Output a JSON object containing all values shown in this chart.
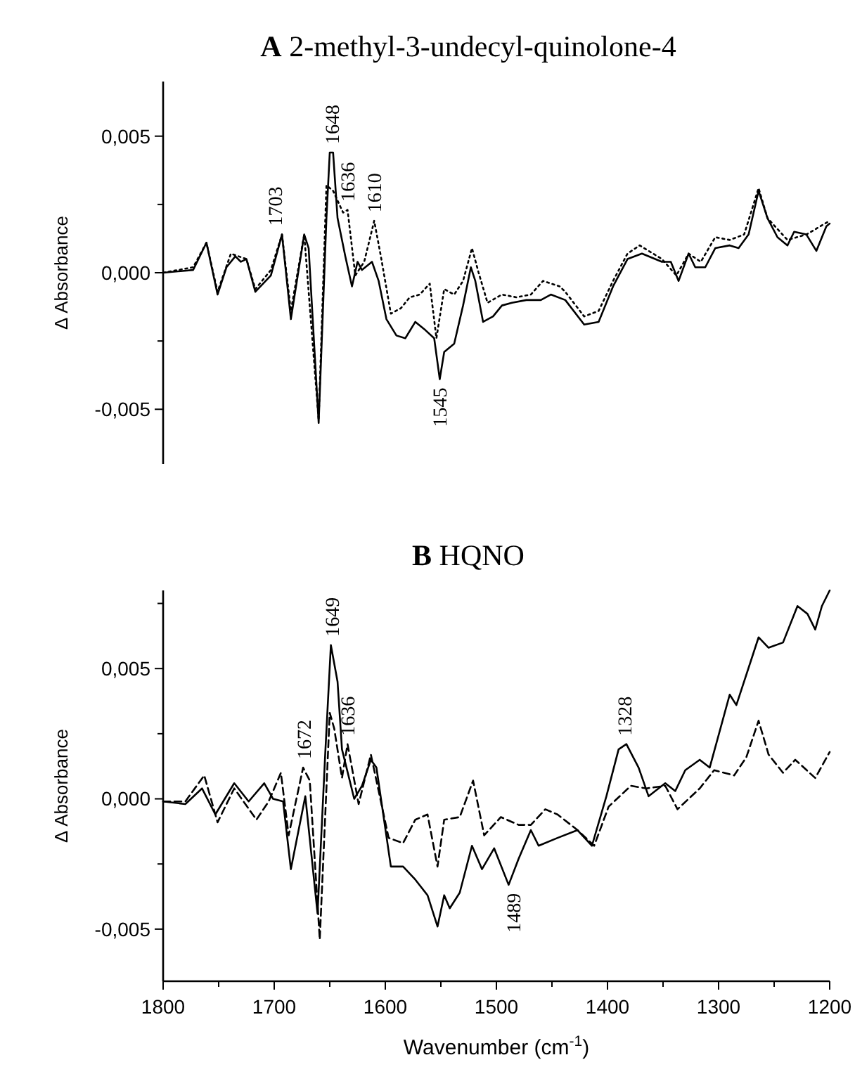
{
  "chart_data": [
    {
      "type": "line",
      "title": "A 2-methyl-3-undecyl-quinolone-4",
      "ylabel": "Δ Absorbance",
      "xlim": [
        1800,
        1200
      ],
      "ylim": [
        -0.007,
        0.007
      ],
      "yticks": [
        {
          "value": 0.005,
          "label": "0,005"
        },
        {
          "value": 0.0025,
          "label": null
        },
        {
          "value": 0,
          "label": "0,000"
        },
        {
          "value": -0.0025,
          "label": null
        },
        {
          "value": -0.005,
          "label": "-0,005"
        }
      ],
      "tick_labels": "y",
      "grid": false,
      "x": [
        1800,
        1773,
        1761,
        1751,
        1743,
        1735,
        1730,
        1725,
        1717,
        1703,
        1693,
        1685,
        1673,
        1669,
        1660,
        1653,
        1650,
        1647,
        1643,
        1636,
        1630,
        1625,
        1621,
        1612,
        1606,
        1599,
        1590,
        1582,
        1573,
        1564,
        1556,
        1551,
        1547,
        1538,
        1530,
        1523,
        1519,
        1512,
        1503,
        1495,
        1486,
        1473,
        1460,
        1451,
        1438,
        1421,
        1408,
        1395,
        1382,
        1369,
        1351,
        1343,
        1336,
        1327,
        1321,
        1312,
        1303,
        1290,
        1282,
        1273,
        1264,
        1256,
        1247,
        1238,
        1232,
        1221,
        1212,
        1203,
        1200
      ],
      "series": [
        {
          "color": "#000000",
          "line_style": "solid",
          "values": [
            0,
            0.0001,
            0.0011,
            -0.0008,
            0.0002,
            0.0006,
            0.0004,
            0.0005,
            -0.0007,
            -0.0001,
            0.0014,
            -0.0017,
            0.0014,
            0.0009,
            -0.0055,
            0.002,
            0.0044,
            0.0044,
            0.002,
            0.0006,
            -0.0005,
            0.0004,
            0.0001,
            0.0004,
            -0.0003,
            -0.0017,
            -0.0023,
            -0.0024,
            -0.0018,
            -0.0021,
            -0.0024,
            -0.0039,
            -0.0029,
            -0.0026,
            -0.0012,
            0.0002,
            -0.0003,
            -0.0018,
            -0.0016,
            -0.0012,
            -0.0011,
            -0.001,
            -0.001,
            -0.0008,
            -0.001,
            -0.0019,
            -0.0018,
            -0.0005,
            0.0005,
            0.0007,
            0.0004,
            0.0004,
            -0.0003,
            0.0007,
            0.0002,
            0.0002,
            0.0009,
            0.001,
            0.0009,
            0.0014,
            0.003,
            0.002,
            0.0013,
            0.001,
            0.0015,
            0.0014,
            0.0008,
            0.0017,
            0.0018
          ]
        },
        {
          "color": "#000000",
          "line_style": "dotted",
          "x": [
            1800,
            1773,
            1761,
            1751,
            1739,
            1725,
            1717,
            1703,
            1693,
            1685,
            1673,
            1660,
            1653,
            1647,
            1638,
            1634,
            1627,
            1619,
            1610,
            1604,
            1595,
            1586,
            1578,
            1569,
            1560,
            1554,
            1547,
            1538,
            1530,
            1522,
            1516,
            1508,
            1495,
            1482,
            1469,
            1458,
            1443,
            1438,
            1421,
            1408,
            1395,
            1382,
            1371,
            1351,
            1338,
            1327,
            1316,
            1303,
            1290,
            1277,
            1264,
            1256,
            1238,
            1221,
            1200
          ],
          "values": [
            0,
            0.0002,
            0.0011,
            -0.0007,
            0.0007,
            0.0005,
            -0.0006,
            0.0001,
            0.0014,
            -0.0014,
            0.0014,
            -0.0054,
            0.0032,
            0.003,
            0.0022,
            0.0023,
            -0.0001,
            0.0004,
            0.0019,
            0.0006,
            -0.0015,
            -0.0013,
            -0.0009,
            -0.0008,
            -0.0004,
            -0.0024,
            -0.0006,
            -0.0008,
            -0.0003,
            0.0009,
            0,
            -0.0011,
            -0.0008,
            -0.0009,
            -0.0008,
            -0.0003,
            -0.0005,
            -0.0007,
            -0.0016,
            -0.0014,
            -0.0003,
            0.0007,
            0.001,
            0.0005,
            -0.0001,
            0.0007,
            0.0004,
            0.0013,
            0.0012,
            0.0014,
            0.0031,
            0.002,
            0.0012,
            0.0014,
            0.0019
          ]
        }
      ],
      "annotations": [
        {
          "text": "1703",
          "x": 1699,
          "y": 0.0014
        },
        {
          "text": "1648",
          "x": 1648,
          "y": 0.0044
        },
        {
          "text": "1636",
          "x": 1634,
          "y": 0.0023
        },
        {
          "text": "1610",
          "x": 1610,
          "y": 0.0019
        },
        {
          "text": "1545",
          "x": 1551,
          "y": -0.0039
        }
      ]
    },
    {
      "type": "line",
      "title": "B HQNO",
      "xlabel": "Wavenumber (cm$^{-1}$)",
      "ylabel": "Δ Absorbance",
      "xlim": [
        1800,
        1200
      ],
      "xticks": [
        1800,
        {
          "value": 1750,
          "label": null
        },
        1700,
        {
          "value": 1650,
          "label": null
        },
        1600,
        {
          "value": 1550,
          "label": null
        },
        1500,
        {
          "value": 1450,
          "label": null
        },
        1400,
        {
          "value": 1350,
          "label": null
        },
        1300,
        {
          "value": 1250,
          "label": null
        },
        1200
      ],
      "ylim": [
        -0.007,
        0.008
      ],
      "yticks": [
        {
          "value": 0.0075,
          "label": null
        },
        {
          "value": 0.005,
          "label": "0,005"
        },
        {
          "value": 0.0025,
          "label": null
        },
        {
          "value": 0,
          "label": "0,000"
        },
        {
          "value": -0.0025,
          "label": null
        },
        {
          "value": -0.005,
          "label": "-0,005"
        }
      ],
      "grid": false,
      "series": [
        {
          "color": "#000000",
          "line_style": "solid",
          "x": [
            1800,
            1780,
            1765,
            1753,
            1736,
            1723,
            1709,
            1701,
            1692,
            1685,
            1672,
            1661,
            1654,
            1649,
            1643,
            1639,
            1628,
            1621,
            1613,
            1608,
            1595,
            1584,
            1573,
            1562,
            1553,
            1547,
            1542,
            1533,
            1522,
            1513,
            1502,
            1489,
            1480,
            1469,
            1462,
            1445,
            1427,
            1414,
            1401,
            1390,
            1383,
            1372,
            1363,
            1348,
            1339,
            1330,
            1317,
            1308,
            1290,
            1284,
            1264,
            1255,
            1242,
            1229,
            1220,
            1213,
            1207,
            1200
          ],
          "values": [
            -0.0001,
            -0.0002,
            0.0004,
            -0.0006,
            0.0006,
            -0.0001,
            0.0006,
            0,
            -0.0001,
            -0.0027,
            0.0001,
            -0.0044,
            0.0018,
            0.0059,
            0.0045,
            0.0019,
            0,
            0.0005,
            0.0015,
            0.0012,
            -0.0026,
            -0.0026,
            -0.0031,
            -0.0037,
            -0.0049,
            -0.0037,
            -0.0042,
            -0.0036,
            -0.0018,
            -0.0027,
            -0.0019,
            -0.0033,
            -0.0023,
            -0.0012,
            -0.0018,
            -0.0015,
            -0.0012,
            -0.0018,
            0.0001,
            0.0019,
            0.0021,
            0.0012,
            0.0001,
            0.0006,
            0.0003,
            0.0011,
            0.0015,
            0.0012,
            0.004,
            0.0036,
            0.0062,
            0.0058,
            0.006,
            0.0074,
            0.0071,
            0.0065,
            0.0074,
            0.008
          ]
        },
        {
          "color": "#000000",
          "line_style": "dashed",
          "x": [
            1800,
            1780,
            1763,
            1751,
            1736,
            1716,
            1705,
            1694,
            1687,
            1674,
            1668,
            1659,
            1650,
            1646,
            1639,
            1634,
            1624,
            1613,
            1597,
            1584,
            1573,
            1562,
            1553,
            1547,
            1533,
            1521,
            1511,
            1496,
            1480,
            1469,
            1456,
            1445,
            1427,
            1412,
            1399,
            1379,
            1365,
            1348,
            1337,
            1317,
            1304,
            1286,
            1275,
            1264,
            1255,
            1242,
            1231,
            1213,
            1200
          ],
          "values": [
            -0.0001,
            -0.0001,
            0.0009,
            -0.0009,
            0.0004,
            -0.0008,
            -0.0001,
            0.001,
            -0.0014,
            0.0012,
            0.0007,
            -0.0054,
            0.0033,
            0.0027,
            0.0008,
            0.0021,
            -0.0002,
            0.0017,
            -0.0015,
            -0.0017,
            -0.0008,
            -0.0006,
            -0.0026,
            -0.0008,
            -0.0007,
            0.0007,
            -0.0014,
            -0.0007,
            -0.001,
            -0.001,
            -0.0004,
            -0.0006,
            -0.0012,
            -0.0018,
            -0.0003,
            0.0005,
            0.0004,
            0.0005,
            -0.0004,
            0.0004,
            0.0011,
            0.0009,
            0.0016,
            0.003,
            0.0017,
            0.001,
            0.0015,
            0.0008,
            0.0018
          ]
        }
      ],
      "annotations": [
        {
          "text": "1672",
          "x": 1673,
          "y": 0.0012
        },
        {
          "text": "1649",
          "x": 1648,
          "y": 0.0059
        },
        {
          "text": "1636",
          "x": 1634,
          "y": 0.0021
        },
        {
          "text": "1328",
          "x": 1385,
          "y": 0.0021
        },
        {
          "text": "1489",
          "x": 1485,
          "y": -0.0033
        }
      ]
    }
  ]
}
